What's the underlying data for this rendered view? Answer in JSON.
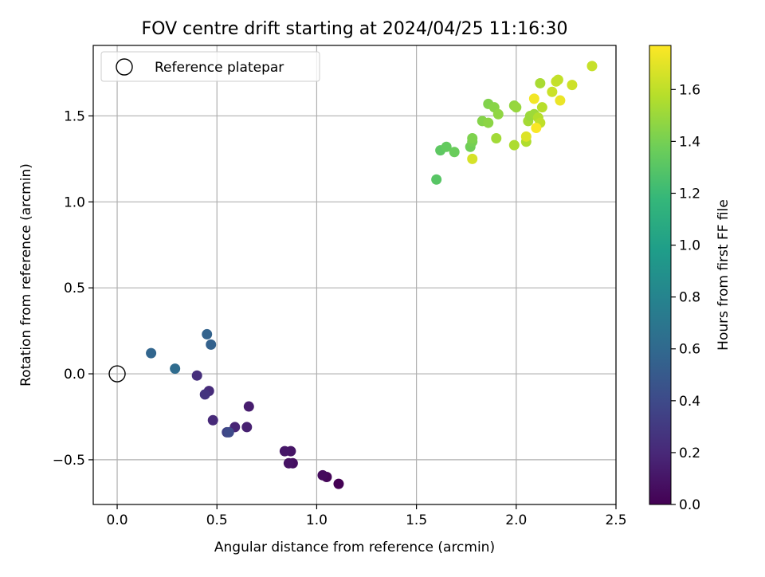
{
  "chart_data": {
    "type": "scatter",
    "title": "FOV centre drift starting at 2024/04/25 11:16:30",
    "xlabel": "Angular distance from reference (arcmin)",
    "ylabel": "Rotation from reference (arcmin)",
    "xlim": [
      -0.12,
      2.5
    ],
    "ylim": [
      -0.76,
      1.91
    ],
    "xticks": [
      0.0,
      0.5,
      1.0,
      1.5,
      2.0,
      2.5
    ],
    "xtick_labels": [
      "0.0",
      "0.5",
      "1.0",
      "1.5",
      "2.0",
      "2.5"
    ],
    "yticks": [
      -0.5,
      0.0,
      0.5,
      1.0,
      1.5
    ],
    "ytick_labels": [
      "−0.5",
      "0.0",
      "0.5",
      "1.0",
      "1.5"
    ],
    "grid": true,
    "legend": {
      "placement": "top-left",
      "entries": [
        {
          "label": "Reference platepar",
          "marker": "open-circle"
        }
      ]
    },
    "reference_point": {
      "x": 0.0,
      "y": 0.0
    },
    "colormap": "viridis",
    "colorbar": {
      "label": "Hours from first FF file",
      "range": [
        0.0,
        1.77
      ],
      "ticks": [
        0.0,
        0.2,
        0.4,
        0.6,
        0.8,
        1.0,
        1.2,
        1.4,
        1.6
      ],
      "tick_labels": [
        "0.0",
        "0.2",
        "0.4",
        "0.6",
        "0.8",
        "1.0",
        "1.2",
        "1.4",
        "1.6"
      ]
    },
    "points": [
      {
        "x": 1.11,
        "y": -0.64,
        "h": 0.0
      },
      {
        "x": 1.05,
        "y": -0.6,
        "h": 0.03
      },
      {
        "x": 1.03,
        "y": -0.59,
        "h": 0.05
      },
      {
        "x": 0.88,
        "y": -0.52,
        "h": 0.07
      },
      {
        "x": 0.86,
        "y": -0.52,
        "h": 0.09
      },
      {
        "x": 0.87,
        "y": -0.45,
        "h": 0.1
      },
      {
        "x": 0.84,
        "y": -0.45,
        "h": 0.11
      },
      {
        "x": 0.66,
        "y": -0.19,
        "h": 0.14
      },
      {
        "x": 0.65,
        "y": -0.31,
        "h": 0.16
      },
      {
        "x": 0.59,
        "y": -0.31,
        "h": 0.18
      },
      {
        "x": 0.48,
        "y": -0.27,
        "h": 0.21
      },
      {
        "x": 0.46,
        "y": -0.1,
        "h": 0.22
      },
      {
        "x": 0.44,
        "y": -0.12,
        "h": 0.27
      },
      {
        "x": 0.4,
        "y": -0.01,
        "h": 0.24
      },
      {
        "x": 0.55,
        "y": -0.34,
        "h": 0.35
      },
      {
        "x": 0.56,
        "y": -0.34,
        "h": 0.4
      },
      {
        "x": 0.29,
        "y": 0.03,
        "h": 0.62
      },
      {
        "x": 0.17,
        "y": 0.12,
        "h": 0.58
      },
      {
        "x": 0.45,
        "y": 0.23,
        "h": 0.56
      },
      {
        "x": 0.47,
        "y": 0.17,
        "h": 0.55
      },
      {
        "x": 1.6,
        "y": 1.13,
        "h": 1.3
      },
      {
        "x": 1.62,
        "y": 1.3,
        "h": 1.32
      },
      {
        "x": 1.65,
        "y": 1.32,
        "h": 1.34
      },
      {
        "x": 1.69,
        "y": 1.29,
        "h": 1.36
      },
      {
        "x": 1.77,
        "y": 1.32,
        "h": 1.38
      },
      {
        "x": 1.78,
        "y": 1.35,
        "h": 1.4
      },
      {
        "x": 1.78,
        "y": 1.37,
        "h": 1.42
      },
      {
        "x": 1.83,
        "y": 1.47,
        "h": 1.44
      },
      {
        "x": 1.86,
        "y": 1.46,
        "h": 1.46
      },
      {
        "x": 1.86,
        "y": 1.57,
        "h": 1.43
      },
      {
        "x": 1.89,
        "y": 1.55,
        "h": 1.45
      },
      {
        "x": 1.91,
        "y": 1.51,
        "h": 1.47
      },
      {
        "x": 1.99,
        "y": 1.56,
        "h": 1.48
      },
      {
        "x": 2.0,
        "y": 1.55,
        "h": 1.49
      },
      {
        "x": 1.9,
        "y": 1.37,
        "h": 1.52
      },
      {
        "x": 1.99,
        "y": 1.33,
        "h": 1.55
      },
      {
        "x": 2.05,
        "y": 1.35,
        "h": 1.56
      },
      {
        "x": 2.06,
        "y": 1.47,
        "h": 1.53
      },
      {
        "x": 2.07,
        "y": 1.5,
        "h": 1.5
      },
      {
        "x": 2.09,
        "y": 1.51,
        "h": 1.51
      },
      {
        "x": 2.11,
        "y": 1.49,
        "h": 1.57
      },
      {
        "x": 2.12,
        "y": 1.69,
        "h": 1.54
      },
      {
        "x": 2.13,
        "y": 1.55,
        "h": 1.58
      },
      {
        "x": 2.12,
        "y": 1.46,
        "h": 1.6
      },
      {
        "x": 1.78,
        "y": 1.25,
        "h": 1.66
      },
      {
        "x": 2.05,
        "y": 1.38,
        "h": 1.68
      },
      {
        "x": 2.09,
        "y": 1.6,
        "h": 1.74
      },
      {
        "x": 2.1,
        "y": 1.43,
        "h": 1.76
      },
      {
        "x": 2.18,
        "y": 1.64,
        "h": 1.63
      },
      {
        "x": 2.2,
        "y": 1.7,
        "h": 1.62
      },
      {
        "x": 2.21,
        "y": 1.71,
        "h": 1.61
      },
      {
        "x": 2.22,
        "y": 1.59,
        "h": 1.72
      },
      {
        "x": 2.28,
        "y": 1.68,
        "h": 1.64
      },
      {
        "x": 2.38,
        "y": 1.79,
        "h": 1.62
      }
    ]
  }
}
